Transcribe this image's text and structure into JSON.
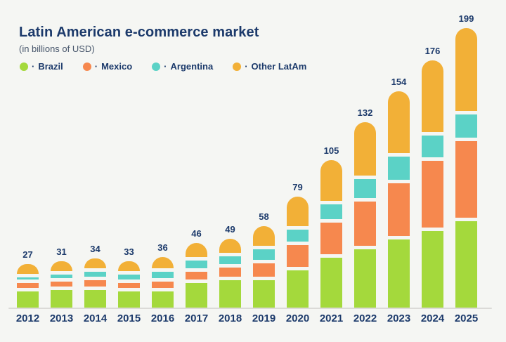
{
  "header": {
    "title": "Latin American e-commerce market",
    "subtitle": "(in billions of USD)"
  },
  "legend": {
    "separator": "·",
    "items": [
      {
        "label": "Brazil",
        "color": "#A4D93C",
        "icon": "brazil-dot"
      },
      {
        "label": "Mexico",
        "color": "#F6884E",
        "icon": "mexico-dot"
      },
      {
        "label": "Argentina",
        "color": "#5BD2C6",
        "icon": "argentina-dot"
      },
      {
        "label": "Other LatAm",
        "color": "#F2B037",
        "icon": "other-latam-dot"
      }
    ]
  },
  "chart_data": {
    "type": "bar",
    "stacked": true,
    "title": "Latin American e-commerce market",
    "unit": "in billions of USD",
    "xlabel": "",
    "ylabel": "",
    "grid": false,
    "legend_position": "top",
    "categories": [
      "2012",
      "2013",
      "2014",
      "2015",
      "2016",
      "2017",
      "2018",
      "2019",
      "2020",
      "2021",
      "2022",
      "2023",
      "2024",
      "2025"
    ],
    "series": [
      {
        "name": "Brazil",
        "color": "#A4D93C",
        "values": [
          13,
          14,
          14,
          13,
          13,
          19,
          21,
          21,
          28,
          37,
          43,
          50,
          56,
          63
        ]
      },
      {
        "name": "Mexico",
        "color": "#F6884E",
        "values": [
          6,
          6,
          7,
          6,
          7,
          8,
          9,
          12,
          18,
          25,
          34,
          40,
          50,
          57
        ]
      },
      {
        "name": "Argentina",
        "color": "#5BD2C6",
        "values": [
          4,
          5,
          6,
          6,
          7,
          8,
          8,
          10,
          11,
          13,
          16,
          19,
          18,
          19
        ]
      },
      {
        "name": "Other LatAm",
        "color": "#F2B037",
        "values": [
          4,
          6,
          7,
          8,
          9,
          11,
          11,
          15,
          22,
          30,
          39,
          45,
          52,
          60
        ]
      }
    ],
    "totals": [
      "27",
      "31",
      "34",
      "33",
      "36",
      "46",
      "49",
      "58",
      "79",
      "105",
      "132",
      "154",
      "176",
      "199"
    ]
  }
}
